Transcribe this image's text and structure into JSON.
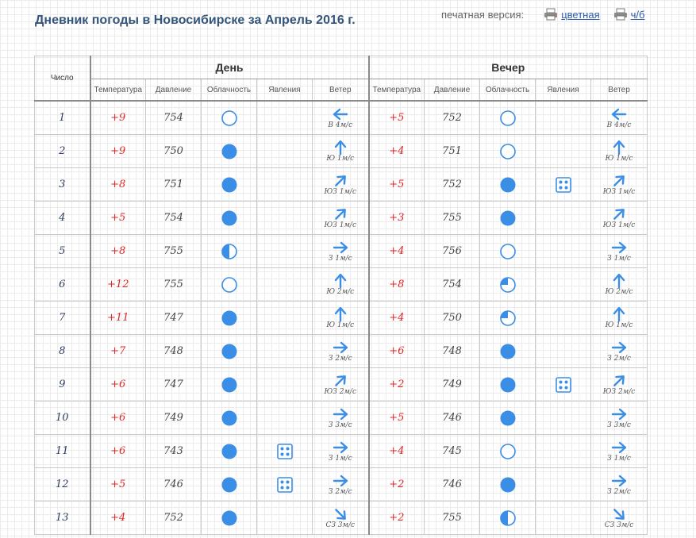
{
  "title": "Дневник погоды в Новосибирске за Апрель 2016 г.",
  "print": {
    "label": "печатная версия:",
    "color_link": "цветная",
    "bw_link": "ч/б"
  },
  "headers": {
    "day_num": "Число",
    "day": "День",
    "evening": "Вечер",
    "cols": [
      "Температура",
      "Давление",
      "Облачность",
      "Явления",
      "Ветер"
    ]
  },
  "colors": {
    "accent": "#3a8ee6",
    "temp": "#e02424",
    "title": "#34557a"
  },
  "rows": [
    {
      "day": "1",
      "d": {
        "temp": "+9",
        "pres": "754",
        "cloud": "clear-icon",
        "phen": "",
        "wind_dir": "W",
        "wind": "В 4м/с"
      },
      "e": {
        "temp": "+5",
        "pres": "752",
        "cloud": "clear-icon",
        "phen": "",
        "wind_dir": "W",
        "wind": "В 4м/с"
      }
    },
    {
      "day": "2",
      "d": {
        "temp": "+9",
        "pres": "750",
        "cloud": "overcast-icon",
        "phen": "",
        "wind_dir": "N",
        "wind": "Ю 1м/с"
      },
      "e": {
        "temp": "+4",
        "pres": "751",
        "cloud": "clear-icon",
        "phen": "",
        "wind_dir": "N",
        "wind": "Ю 1м/с"
      }
    },
    {
      "day": "3",
      "d": {
        "temp": "+8",
        "pres": "751",
        "cloud": "overcast-icon",
        "phen": "",
        "wind_dir": "NE",
        "wind": "ЮЗ 1м/с"
      },
      "e": {
        "temp": "+5",
        "pres": "752",
        "cloud": "overcast-icon",
        "phen": "rain-icon",
        "wind_dir": "NE",
        "wind": "ЮЗ 1м/с"
      }
    },
    {
      "day": "4",
      "d": {
        "temp": "+5",
        "pres": "754",
        "cloud": "overcast-icon",
        "phen": "",
        "wind_dir": "NE",
        "wind": "ЮЗ 1м/с"
      },
      "e": {
        "temp": "+3",
        "pres": "755",
        "cloud": "overcast-icon",
        "phen": "",
        "wind_dir": "NE",
        "wind": "ЮЗ 1м/с"
      }
    },
    {
      "day": "5",
      "d": {
        "temp": "+8",
        "pres": "755",
        "cloud": "half-cloudy-icon",
        "phen": "",
        "wind_dir": "E",
        "wind": "З 1м/с"
      },
      "e": {
        "temp": "+4",
        "pres": "756",
        "cloud": "clear-icon",
        "phen": "",
        "wind_dir": "E",
        "wind": "З 1м/с"
      }
    },
    {
      "day": "6",
      "d": {
        "temp": "+12",
        "pres": "755",
        "cloud": "clear-icon",
        "phen": "",
        "wind_dir": "N",
        "wind": "Ю 2м/с"
      },
      "e": {
        "temp": "+8",
        "pres": "754",
        "cloud": "partly-cloudy-icon",
        "phen": "",
        "wind_dir": "N",
        "wind": "Ю 2м/с"
      }
    },
    {
      "day": "7",
      "d": {
        "temp": "+11",
        "pres": "747",
        "cloud": "overcast-icon",
        "phen": "",
        "wind_dir": "N",
        "wind": "Ю 1м/с"
      },
      "e": {
        "temp": "+4",
        "pres": "750",
        "cloud": "partly-cloudy-icon",
        "phen": "",
        "wind_dir": "N",
        "wind": "Ю 1м/с"
      }
    },
    {
      "day": "8",
      "d": {
        "temp": "+7",
        "pres": "748",
        "cloud": "overcast-icon",
        "phen": "",
        "wind_dir": "E",
        "wind": "З 2м/с"
      },
      "e": {
        "temp": "+6",
        "pres": "748",
        "cloud": "overcast-icon",
        "phen": "",
        "wind_dir": "E",
        "wind": "З 2м/с"
      }
    },
    {
      "day": "9",
      "d": {
        "temp": "+6",
        "pres": "747",
        "cloud": "overcast-icon",
        "phen": "",
        "wind_dir": "NE",
        "wind": "ЮЗ 2м/с"
      },
      "e": {
        "temp": "+2",
        "pres": "749",
        "cloud": "overcast-icon",
        "phen": "rain-icon",
        "wind_dir": "NE",
        "wind": "ЮЗ 2м/с"
      }
    },
    {
      "day": "10",
      "d": {
        "temp": "+6",
        "pres": "749",
        "cloud": "overcast-icon",
        "phen": "",
        "wind_dir": "E",
        "wind": "З 3м/с"
      },
      "e": {
        "temp": "+5",
        "pres": "746",
        "cloud": "overcast-icon",
        "phen": "",
        "wind_dir": "E",
        "wind": "З 3м/с"
      }
    },
    {
      "day": "11",
      "d": {
        "temp": "+6",
        "pres": "743",
        "cloud": "overcast-icon",
        "phen": "rain-icon",
        "wind_dir": "E",
        "wind": "З 1м/с"
      },
      "e": {
        "temp": "+4",
        "pres": "745",
        "cloud": "clear-icon",
        "phen": "",
        "wind_dir": "E",
        "wind": "З 1м/с"
      }
    },
    {
      "day": "12",
      "d": {
        "temp": "+5",
        "pres": "746",
        "cloud": "overcast-icon",
        "phen": "rain-icon",
        "wind_dir": "E",
        "wind": "З 2м/с"
      },
      "e": {
        "temp": "+2",
        "pres": "746",
        "cloud": "overcast-icon",
        "phen": "",
        "wind_dir": "E",
        "wind": "З 2м/с"
      }
    },
    {
      "day": "13",
      "d": {
        "temp": "+4",
        "pres": "752",
        "cloud": "overcast-icon",
        "phen": "",
        "wind_dir": "SE",
        "wind": "СЗ 3м/с"
      },
      "e": {
        "temp": "+2",
        "pres": "755",
        "cloud": "half-cloudy-icon",
        "phen": "",
        "wind_dir": "SE",
        "wind": "СЗ 3м/с"
      }
    }
  ]
}
